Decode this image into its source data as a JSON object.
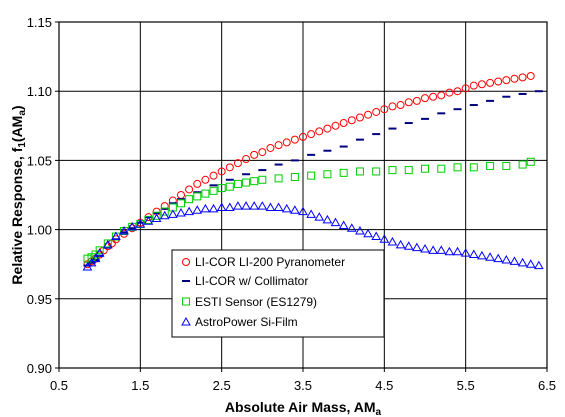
{
  "chart_data": {
    "type": "scatter",
    "xlabel": "Absolute Air Mass, AM",
    "xlabel_sub": "a",
    "ylabel": "Relative Response,  f",
    "ylabel_sub": "1",
    "ylabel_suffix": "(AM",
    "ylabel_suffix_sub": "a",
    "ylabel_close": ")",
    "xlim": [
      0.5,
      6.5
    ],
    "ylim": [
      0.9,
      1.15
    ],
    "xticks": [
      "0.5",
      "1.5",
      "2.5",
      "3.5",
      "4.5",
      "5.5",
      "6.5"
    ],
    "yticks": [
      "0.90",
      "0.95",
      "1.00",
      "1.05",
      "1.10",
      "1.15"
    ],
    "grid": true,
    "legend_position": "lower-left",
    "series": [
      {
        "name": "LI-COR LI-200 Pyranometer",
        "marker": "circle",
        "color": "#ff0000",
        "x": [
          0.85,
          0.9,
          0.95,
          1.0,
          1.05,
          1.1,
          1.15,
          1.2,
          1.3,
          1.4,
          1.5,
          1.6,
          1.7,
          1.8,
          1.9,
          2.0,
          2.1,
          2.2,
          2.3,
          2.4,
          2.5,
          2.6,
          2.7,
          2.8,
          2.9,
          3.0,
          3.1,
          3.2,
          3.3,
          3.4,
          3.5,
          3.6,
          3.7,
          3.8,
          3.9,
          4.0,
          4.1,
          4.2,
          4.3,
          4.4,
          4.5,
          4.6,
          4.7,
          4.8,
          4.9,
          5.0,
          5.1,
          5.2,
          5.3,
          5.4,
          5.5,
          5.6,
          5.7,
          5.8,
          5.9,
          6.0,
          6.1,
          6.2,
          6.3
        ],
        "y": [
          0.975,
          0.977,
          0.979,
          0.982,
          0.985,
          0.988,
          0.99,
          0.993,
          0.997,
          1.001,
          1.005,
          1.009,
          1.013,
          1.017,
          1.021,
          1.025,
          1.029,
          1.033,
          1.036,
          1.039,
          1.042,
          1.045,
          1.048,
          1.051,
          1.054,
          1.056,
          1.059,
          1.061,
          1.063,
          1.065,
          1.067,
          1.069,
          1.071,
          1.073,
          1.075,
          1.077,
          1.079,
          1.081,
          1.083,
          1.085,
          1.087,
          1.089,
          1.09,
          1.092,
          1.093,
          1.095,
          1.096,
          1.097,
          1.099,
          1.1,
          1.102,
          1.104,
          1.105,
          1.106,
          1.107,
          1.108,
          1.109,
          1.11,
          1.111
        ]
      },
      {
        "name": "LI-COR w/ Collimator",
        "marker": "dash",
        "color": "#00007f",
        "x": [
          0.85,
          0.9,
          0.95,
          1.0,
          1.1,
          1.2,
          1.3,
          1.4,
          1.5,
          1.6,
          1.7,
          1.8,
          1.9,
          2.0,
          2.2,
          2.4,
          2.6,
          2.8,
          3.0,
          3.2,
          3.4,
          3.6,
          3.8,
          4.0,
          4.2,
          4.4,
          4.6,
          4.8,
          5.0,
          5.2,
          5.4,
          5.6,
          5.8,
          6.0,
          6.2,
          6.4
        ],
        "y": [
          0.974,
          0.976,
          0.978,
          0.981,
          0.987,
          0.993,
          0.998,
          1.001,
          1.005,
          1.009,
          1.012,
          1.015,
          1.019,
          1.022,
          1.027,
          1.032,
          1.036,
          1.04,
          1.043,
          1.047,
          1.05,
          1.054,
          1.057,
          1.06,
          1.065,
          1.069,
          1.073,
          1.077,
          1.08,
          1.084,
          1.087,
          1.09,
          1.093,
          1.096,
          1.098,
          1.1
        ]
      },
      {
        "name": "ESTI Sensor (ES1279)",
        "marker": "square",
        "color": "#00cc00",
        "x": [
          0.85,
          0.9,
          0.95,
          1.0,
          1.1,
          1.2,
          1.3,
          1.4,
          1.5,
          1.6,
          1.7,
          1.8,
          1.9,
          2.0,
          2.1,
          2.2,
          2.3,
          2.4,
          2.5,
          2.6,
          2.7,
          2.8,
          2.9,
          3.0,
          3.2,
          3.4,
          3.6,
          3.8,
          4.0,
          4.2,
          4.4,
          4.6,
          4.8,
          5.0,
          5.2,
          5.4,
          5.6,
          5.8,
          6.0,
          6.2,
          6.3
        ],
        "y": [
          0.979,
          0.98,
          0.982,
          0.985,
          0.99,
          0.995,
          0.999,
          1.002,
          1.004,
          1.007,
          1.01,
          1.013,
          1.016,
          1.019,
          1.022,
          1.024,
          1.026,
          1.028,
          1.03,
          1.031,
          1.033,
          1.034,
          1.035,
          1.036,
          1.037,
          1.038,
          1.039,
          1.04,
          1.041,
          1.042,
          1.042,
          1.043,
          1.043,
          1.044,
          1.044,
          1.045,
          1.045,
          1.046,
          1.046,
          1.047,
          1.049
        ]
      },
      {
        "name": "AstroPower Si-Film",
        "marker": "triangle",
        "color": "#0000ff",
        "x": [
          0.85,
          0.9,
          0.95,
          1.0,
          1.1,
          1.2,
          1.3,
          1.4,
          1.5,
          1.6,
          1.7,
          1.8,
          1.9,
          2.0,
          2.1,
          2.2,
          2.3,
          2.4,
          2.5,
          2.6,
          2.7,
          2.8,
          2.9,
          3.0,
          3.1,
          3.2,
          3.3,
          3.4,
          3.5,
          3.6,
          3.7,
          3.8,
          3.9,
          4.0,
          4.1,
          4.2,
          4.3,
          4.4,
          4.5,
          4.6,
          4.7,
          4.8,
          4.9,
          5.0,
          5.1,
          5.2,
          5.3,
          5.4,
          5.5,
          5.6,
          5.7,
          5.8,
          5.9,
          6.0,
          6.1,
          6.2,
          6.3,
          6.4
        ],
        "y": [
          0.973,
          0.976,
          0.979,
          0.983,
          0.989,
          0.995,
          0.999,
          1.002,
          1.004,
          1.006,
          1.008,
          1.01,
          1.011,
          1.012,
          1.013,
          1.014,
          1.015,
          1.015,
          1.016,
          1.016,
          1.017,
          1.017,
          1.017,
          1.017,
          1.016,
          1.016,
          1.015,
          1.014,
          1.013,
          1.011,
          1.009,
          1.007,
          1.005,
          1.003,
          1.001,
          0.999,
          0.997,
          0.995,
          0.993,
          0.991,
          0.989,
          0.988,
          0.987,
          0.986,
          0.985,
          0.985,
          0.984,
          0.984,
          0.983,
          0.982,
          0.981,
          0.98,
          0.979,
          0.978,
          0.977,
          0.976,
          0.975,
          0.974
        ]
      }
    ]
  }
}
